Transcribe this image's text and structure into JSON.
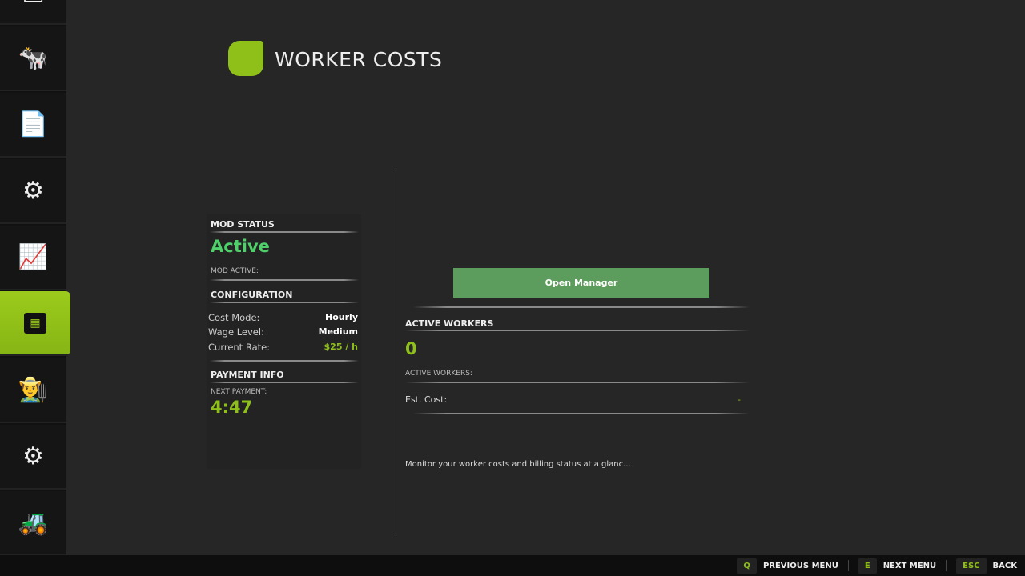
{
  "header": {
    "title": "WORKER COSTS"
  },
  "sidebar": {
    "items": [
      {
        "icon": "farm-icon"
      },
      {
        "icon": "cow-icon"
      },
      {
        "icon": "contracts-icon"
      },
      {
        "icon": "production-icon"
      },
      {
        "icon": "statistics-icon"
      },
      {
        "icon": "map-icon",
        "active": true
      },
      {
        "icon": "farmer-icon"
      },
      {
        "icon": "settings-icon"
      },
      {
        "icon": "excavator-icon"
      }
    ]
  },
  "status": {
    "heading": "MOD STATUS",
    "value": "Active",
    "sub": "MOD ACTIVE:"
  },
  "config": {
    "heading": "CONFIGURATION",
    "rows": [
      {
        "label": "Cost Mode:",
        "value": "Hourly"
      },
      {
        "label": "Wage Level:",
        "value": "Medium"
      },
      {
        "label": "Current Rate:",
        "value": "$25 / h"
      }
    ]
  },
  "payment": {
    "heading": "PAYMENT INFO",
    "label": "NEXT PAYMENT:",
    "value": "4:47"
  },
  "manager": {
    "button": "Open Manager"
  },
  "workers": {
    "heading": "ACTIVE WORKERS",
    "count": "0",
    "sub": "ACTIVE WORKERS:",
    "cost_label": "Est. Cost:",
    "cost_value": "-"
  },
  "description": "Monitor your worker costs and billing status at a glanc...",
  "footer": {
    "prev_key": "Q",
    "prev": "PREVIOUS MENU",
    "next_key": "E",
    "next": "NEXT MENU",
    "back_key": "ESC",
    "back": "BACK"
  },
  "colors": {
    "accent": "#8fc01a",
    "active": "#4fd06a",
    "button": "#5c9c5c"
  }
}
